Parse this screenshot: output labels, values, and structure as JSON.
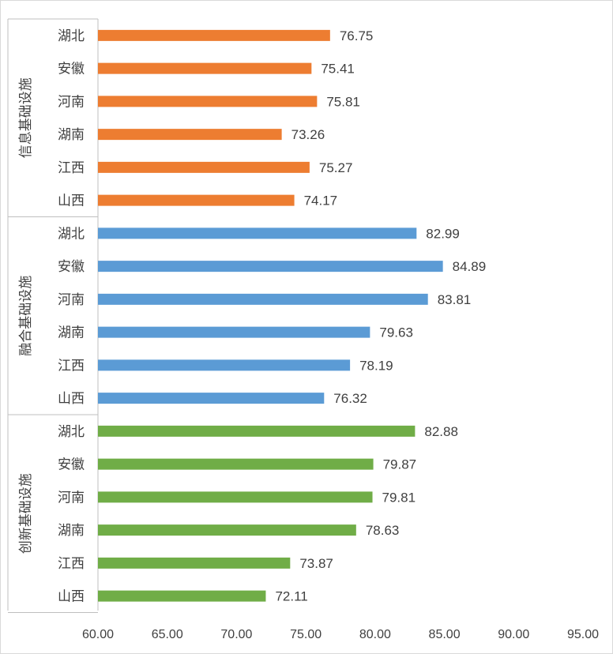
{
  "chart_data": {
    "type": "bar",
    "orientation": "horizontal",
    "title": "",
    "xlabel": "",
    "ylabel": "",
    "xlim": [
      60,
      95
    ],
    "x_ticks": [
      "60.00",
      "65.00",
      "70.00",
      "75.00",
      "80.00",
      "85.00",
      "90.00",
      "95.00"
    ],
    "gridlines": false,
    "data_labels": true,
    "groups": [
      {
        "name": "信息基础设施",
        "color": "#ED7D31",
        "categories": [
          "湖北",
          "安徽",
          "河南",
          "湖南",
          "江西",
          "山西"
        ],
        "values": [
          76.75,
          75.41,
          75.81,
          73.26,
          75.27,
          74.17
        ],
        "labels": [
          "76.75",
          "75.41",
          "75.81",
          "73.26",
          "75.27",
          "74.17"
        ]
      },
      {
        "name": "融合基础设施",
        "color": "#5B9BD5",
        "categories": [
          "湖北",
          "安徽",
          "河南",
          "湖南",
          "江西",
          "山西"
        ],
        "values": [
          82.99,
          84.89,
          83.81,
          79.63,
          78.19,
          76.32
        ],
        "labels": [
          "82.99",
          "84.89",
          "83.81",
          "79.63",
          "78.19",
          "76.32"
        ]
      },
      {
        "name": "创新基础设施",
        "color": "#70AD47",
        "categories": [
          "湖北",
          "安徽",
          "河南",
          "湖南",
          "江西",
          "山西"
        ],
        "values": [
          82.88,
          79.87,
          79.81,
          78.63,
          73.87,
          72.11
        ],
        "labels": [
          "82.88",
          "79.87",
          "79.81",
          "78.63",
          "73.87",
          "72.11"
        ]
      }
    ]
  }
}
